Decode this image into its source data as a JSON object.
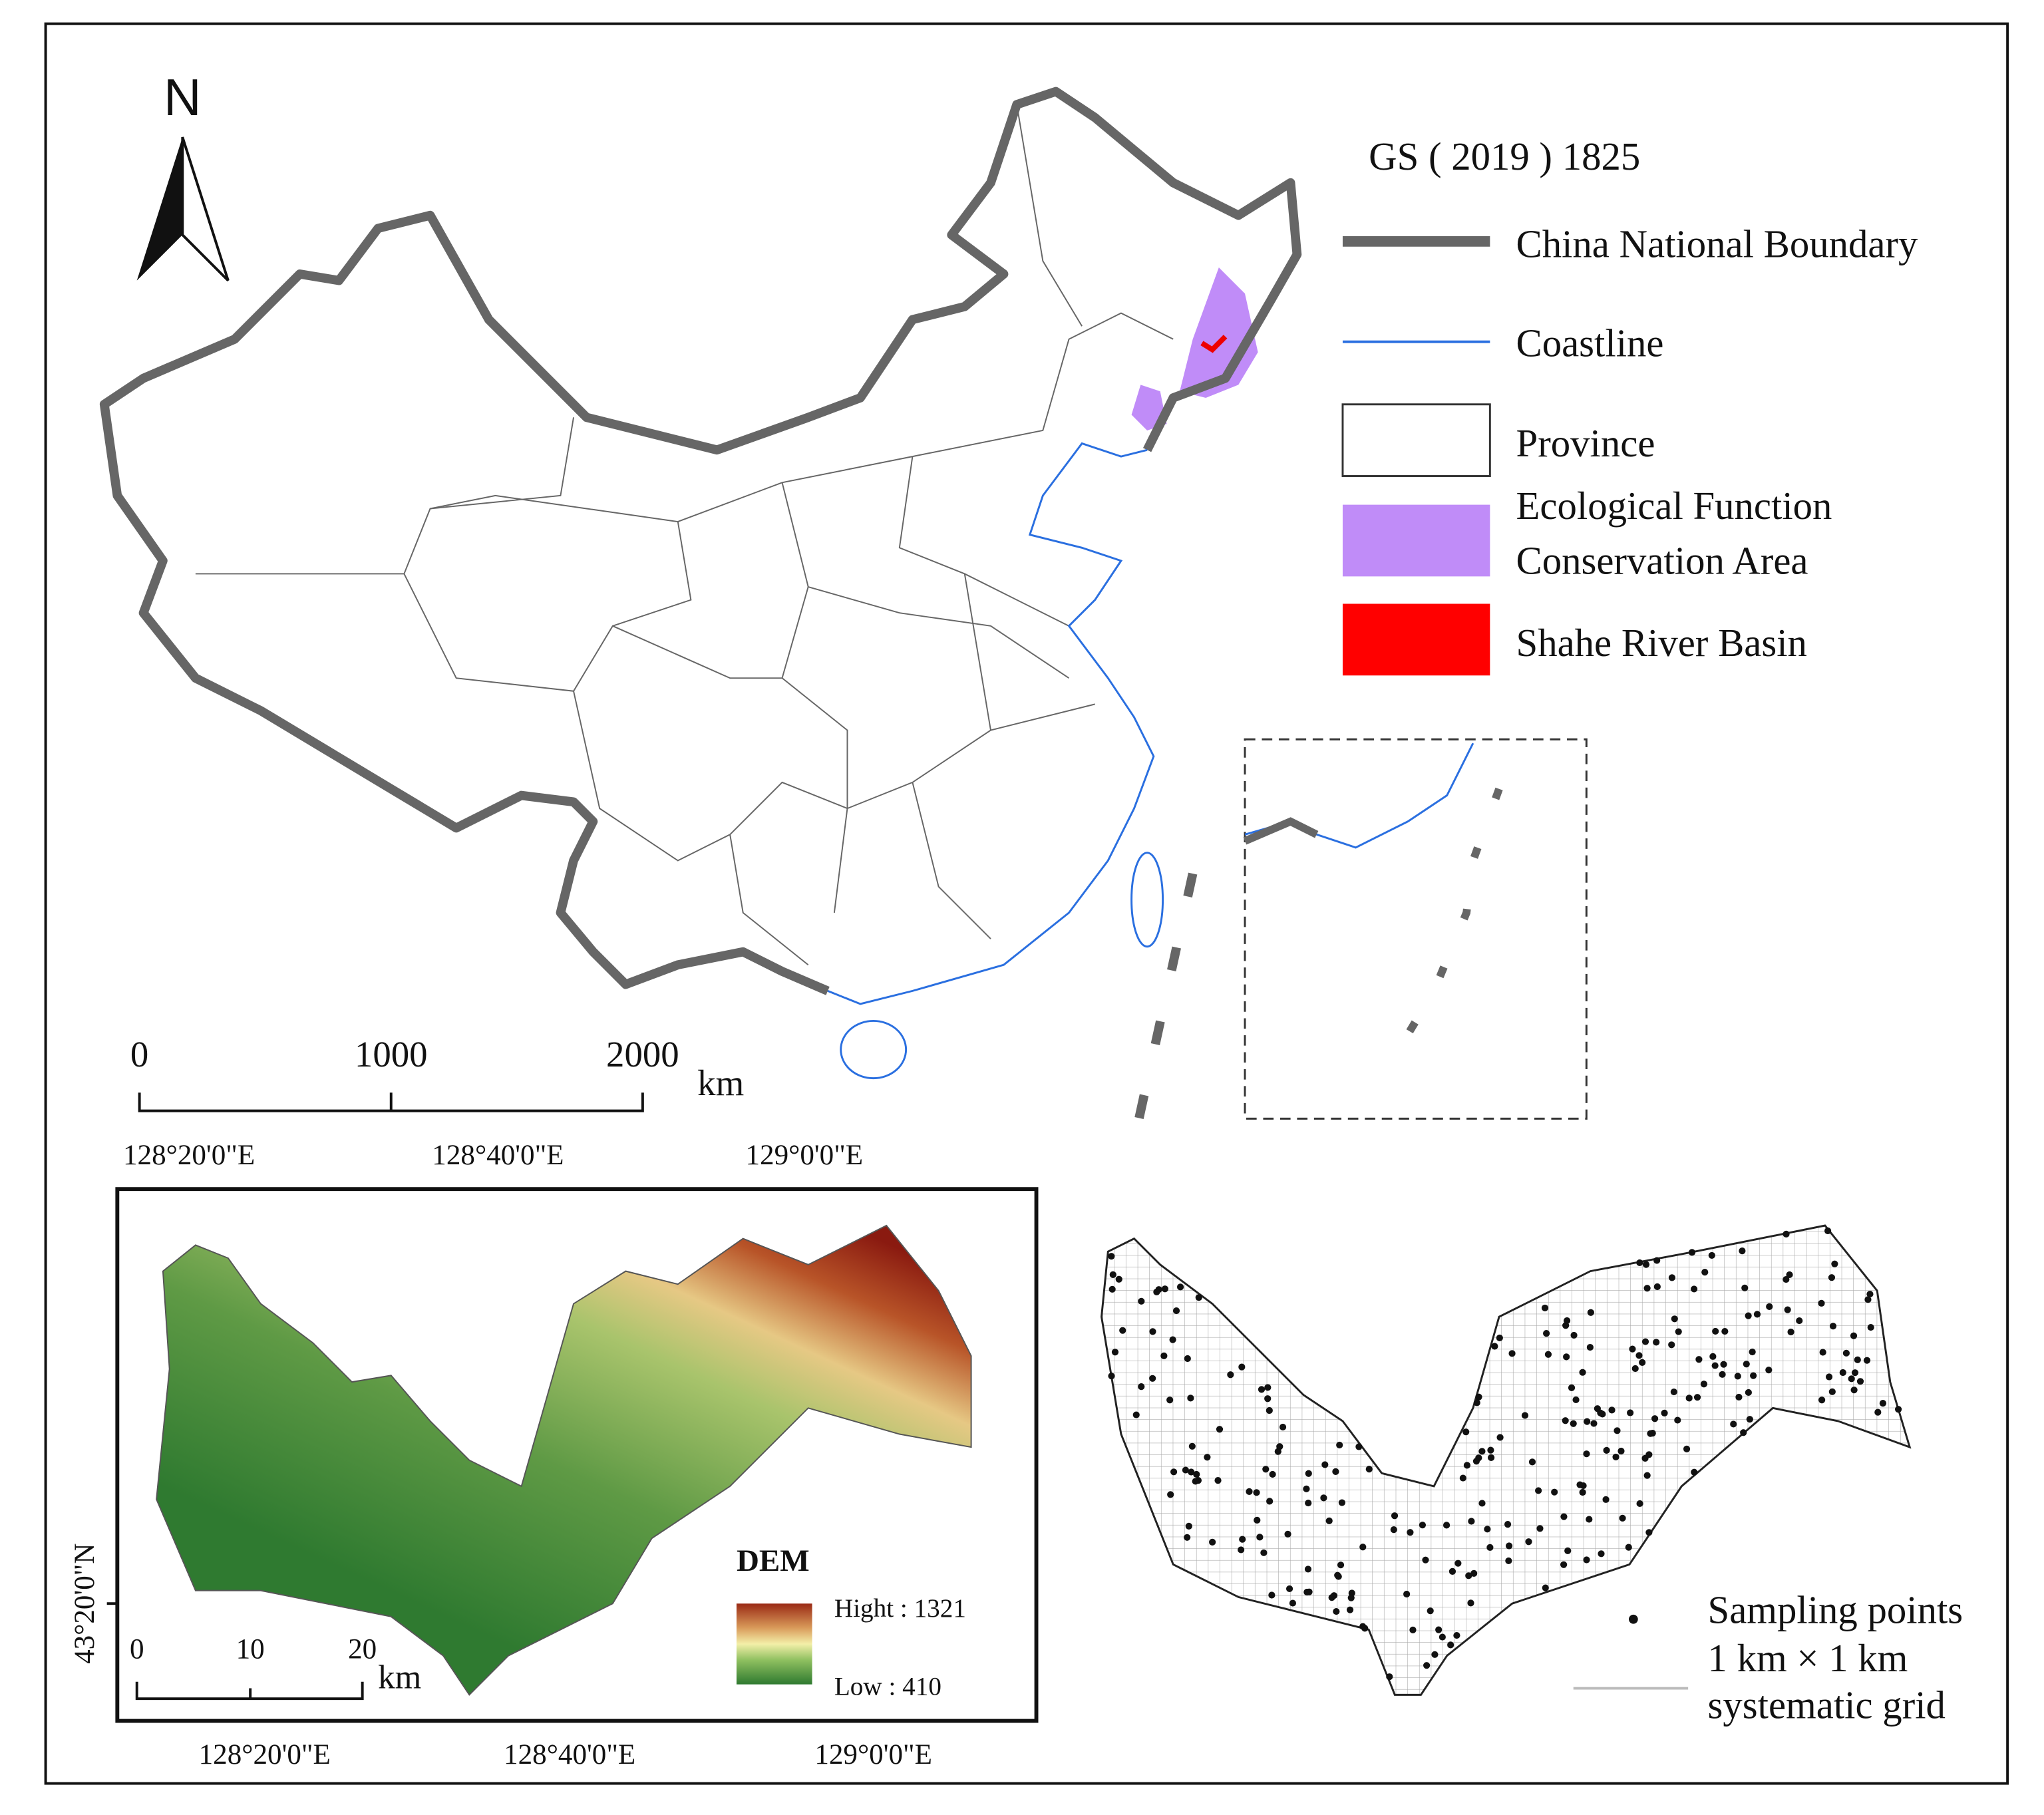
{
  "north_arrow": "N",
  "legend": {
    "title": "GS ( 2019 ) 1825",
    "items": [
      {
        "label": [
          "China National Boundary"
        ]
      },
      {
        "label": [
          "Coastline"
        ]
      },
      {
        "label": [
          "Province"
        ]
      },
      {
        "label": [
          "Ecological Function",
          "Conservation Area"
        ]
      },
      {
        "label": [
          "Shahe River Basin"
        ]
      }
    ]
  },
  "scale_bar": {
    "ticks": [
      "0",
      "1000",
      "2000"
    ],
    "unit": "km"
  },
  "dem_map": {
    "top_labels": [
      "128°20'0\"E",
      "128°40'0\"E",
      "129°0'0\"E"
    ],
    "bottom_labels": [
      "128°20'0\"E",
      "128°40'0\"E",
      "129°0'0\"E"
    ],
    "left_label": "43°20'0\"N",
    "legend_title": "DEM",
    "high": "Hight : 1321",
    "low": "Low : 410",
    "scale_ticks": [
      "0",
      "10",
      "20"
    ],
    "unit": "km"
  },
  "sampling_map": {
    "legend": [
      "Sampling points",
      "1 km × 1 km",
      "systematic grid"
    ]
  }
}
